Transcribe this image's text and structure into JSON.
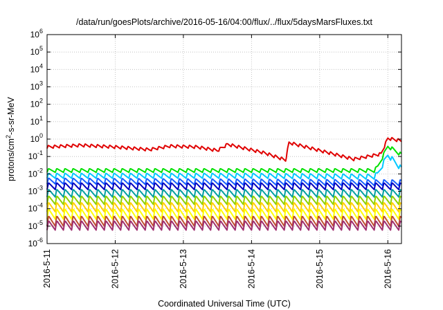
{
  "chart_data": {
    "type": "line",
    "title": "/data/run/goesPlots/archive/2016-05-16/04:00/flux/../flux/5daysMarsFluxes.txt",
    "xlabel": "Coordinated Universal Time (UTC)",
    "ylabel": {
      "base": "protons/cm",
      "sup": "2",
      "rest": "-s-sr-MeV"
    },
    "yscale": "log",
    "ylim": [
      -6,
      6
    ],
    "xlim": [
      0,
      5.2
    ],
    "grid": true,
    "yticks": [
      {
        "exp": 6,
        "label": "10",
        "sup": "6"
      },
      {
        "exp": 5,
        "label": "10",
        "sup": "5"
      },
      {
        "exp": 4,
        "label": "10",
        "sup": "4"
      },
      {
        "exp": 3,
        "label": "10",
        "sup": "3"
      },
      {
        "exp": 2,
        "label": "10",
        "sup": "2"
      },
      {
        "exp": 1,
        "label": "10",
        "sup": "1"
      },
      {
        "exp": 0,
        "label": "10",
        "sup": "0"
      },
      {
        "exp": -1,
        "label": "10",
        "sup": "-1"
      },
      {
        "exp": -2,
        "label": "10",
        "sup": "-2"
      },
      {
        "exp": -3,
        "label": "10",
        "sup": "-3"
      },
      {
        "exp": -4,
        "label": "10",
        "sup": "-4"
      },
      {
        "exp": -5,
        "label": "10",
        "sup": "-5"
      },
      {
        "exp": -6,
        "label": "10",
        "sup": "-6"
      }
    ],
    "xticks": [
      {
        "x": 0,
        "label": "2016-5-11"
      },
      {
        "x": 1,
        "label": "2016-5-12"
      },
      {
        "x": 2,
        "label": "2016-5-13"
      },
      {
        "x": 3,
        "label": "2016-5-14"
      },
      {
        "x": 4,
        "label": "2016-5-15"
      },
      {
        "x": 5,
        "label": "2016-5-16"
      }
    ],
    "series": [
      {
        "color": "#e00000",
        "base": [
          [
            0,
            -0.45
          ],
          [
            0.5,
            -0.35
          ],
          [
            1.0,
            -0.45
          ],
          [
            1.5,
            -0.6
          ],
          [
            1.8,
            -0.4
          ],
          [
            2.2,
            -0.45
          ],
          [
            2.5,
            -0.65
          ],
          [
            2.65,
            -0.3
          ],
          [
            3.2,
            -0.8
          ],
          [
            3.5,
            -1.2
          ],
          [
            3.55,
            -0.2
          ],
          [
            4.0,
            -0.65
          ],
          [
            4.5,
            -1.15
          ],
          [
            4.9,
            -0.85
          ],
          [
            5.0,
            0.05
          ],
          [
            5.2,
            -0.1
          ]
        ],
        "amp": 0.18,
        "period": 0.09
      },
      {
        "color": "#00e000",
        "base": [
          [
            0,
            -1.8
          ],
          [
            3.0,
            -1.8
          ],
          [
            4.8,
            -1.8
          ],
          [
            4.85,
            -1.6
          ],
          [
            5.0,
            -0.4
          ],
          [
            5.2,
            -0.9
          ]
        ],
        "amp": 0.22,
        "period": 0.12
      },
      {
        "color": "#00c8ff",
        "base": [
          [
            0,
            -2.1
          ],
          [
            3.0,
            -2.1
          ],
          [
            4.8,
            -2.15
          ],
          [
            4.85,
            -2.0
          ],
          [
            5.0,
            -0.9
          ],
          [
            5.2,
            -1.7
          ]
        ],
        "amp": 0.3,
        "period": 0.12
      },
      {
        "color": "#1860ff",
        "base": [
          [
            0,
            -2.4
          ],
          [
            5.2,
            -2.5
          ]
        ],
        "amp": 0.35,
        "period": 0.12
      },
      {
        "color": "#0000c0",
        "base": [
          [
            0,
            -2.7
          ],
          [
            5.2,
            -2.7
          ]
        ],
        "amp": 0.4,
        "period": 0.12
      },
      {
        "color": "#00a0a0",
        "base": [
          [
            0,
            -3.1
          ],
          [
            5.2,
            -3.1
          ]
        ],
        "amp": 0.45,
        "period": 0.12
      },
      {
        "color": "#90d000",
        "base": [
          [
            0,
            -3.5
          ],
          [
            5.2,
            -3.5
          ]
        ],
        "amp": 0.5,
        "period": 0.12
      },
      {
        "color": "#ffd000",
        "base": [
          [
            0,
            -3.9
          ],
          [
            5.2,
            -3.9
          ]
        ],
        "amp": 0.55,
        "period": 0.12
      },
      {
        "color": "#ffff00",
        "base": [
          [
            0,
            -4.3
          ],
          [
            5.2,
            -4.3
          ]
        ],
        "amp": 0.6,
        "period": 0.12
      },
      {
        "color": "#c05030",
        "base": [
          [
            0,
            -4.7
          ],
          [
            5.2,
            -4.7
          ]
        ],
        "amp": 0.6,
        "period": 0.12
      },
      {
        "color": "#a03070",
        "base": [
          [
            0,
            -4.95
          ],
          [
            5.2,
            -4.95
          ]
        ],
        "amp": 0.55,
        "period": 0.12
      }
    ]
  }
}
